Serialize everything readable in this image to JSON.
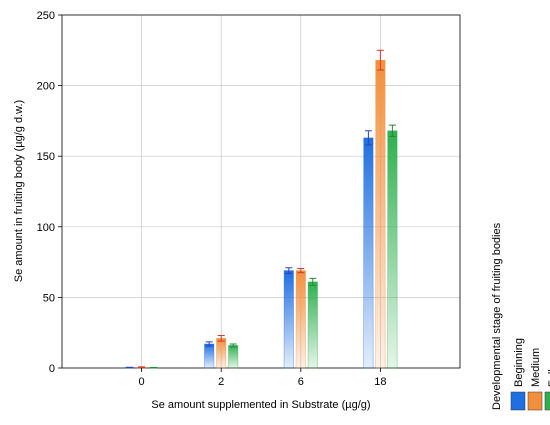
{
  "chart_data": {
    "type": "bar",
    "xlabel": "Se amount supplemented in Substrate (µg/g)",
    "ylabel": "Se amount in fruiting body (µg/g d.w.)",
    "categories": [
      "0",
      "2",
      "6",
      "18"
    ],
    "ylim": [
      0,
      250
    ],
    "yticks": [
      0,
      50,
      100,
      150,
      200,
      250
    ],
    "grid": true,
    "legend": {
      "title": "Developmental stage of fruiting bodies",
      "placement": "right"
    },
    "series": [
      {
        "name": "Beginning",
        "color": "#1f6fe0",
        "edge": "#2a3fc9",
        "values": [
          0.3,
          17,
          69,
          163
        ],
        "errors": [
          0.2,
          1.5,
          2,
          5
        ]
      },
      {
        "name": "Medium",
        "color": "#f28f3c",
        "edge": "#d9362a",
        "values": [
          0.5,
          21,
          69,
          218
        ],
        "errors": [
          0.3,
          2,
          1.5,
          7
        ]
      },
      {
        "name": "Full",
        "color": "#2fb04f",
        "edge": "#238a3a",
        "values": [
          0.2,
          16,
          61,
          168
        ],
        "errors": [
          0.2,
          1,
          2.5,
          4
        ]
      }
    ]
  }
}
